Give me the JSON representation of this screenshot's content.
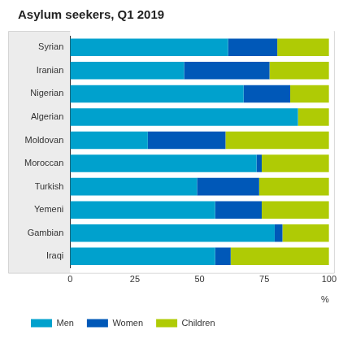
{
  "chart_data": {
    "type": "bar",
    "title": "Asylum seekers, Q1 2019",
    "orientation": "horizontal",
    "stacked": true,
    "categories": [
      "Syrian",
      "Iranian",
      "Nigerian",
      "Algerian",
      "Moldovan",
      "Moroccan",
      "Turkish",
      "Yemeni",
      "Gambian",
      "Iraqi"
    ],
    "series": [
      {
        "name": "Men",
        "color": "#00a1cd",
        "values": [
          61,
          44,
          67,
          88,
          30,
          72,
          49,
          56,
          79,
          56
        ]
      },
      {
        "name": "Women",
        "color": "#0058b8",
        "values": [
          19,
          33,
          18,
          0,
          30,
          2,
          24,
          18,
          3,
          6
        ]
      },
      {
        "name": "Children",
        "color": "#afcb05",
        "values": [
          20,
          23,
          15,
          12,
          40,
          26,
          27,
          26,
          18,
          38
        ]
      }
    ],
    "xlabel": "%",
    "xlim": [
      0,
      100
    ],
    "xticks": [
      0,
      25,
      50,
      75,
      100
    ],
    "grid": false,
    "legend": "bottom"
  }
}
